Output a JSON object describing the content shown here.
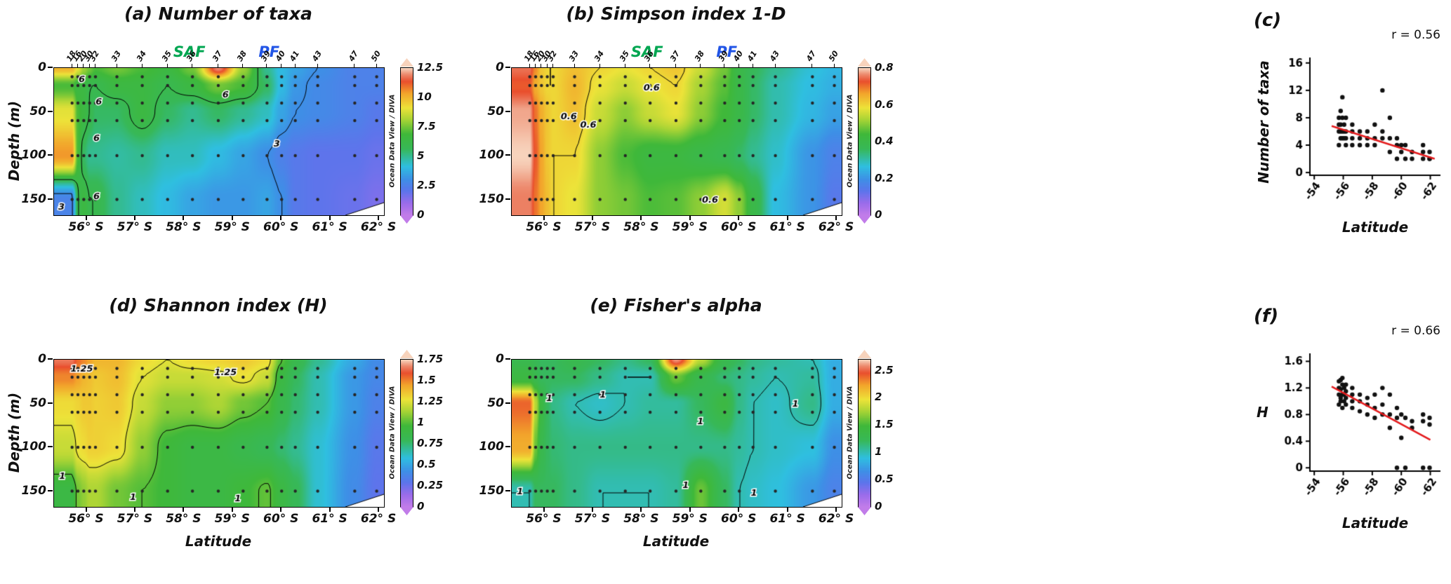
{
  "labels": {
    "depth_axis": "Depth (m)",
    "latitude_axis": "Latitude",
    "odv_credit": "Ocean Data View / DIVA"
  },
  "colors": {
    "saf_green": "#00A651",
    "pf_blue": "#2255E6",
    "regression_red": "#E31A1C",
    "sample_dot": "#262626",
    "contour_line": "#000000"
  },
  "section_common": {
    "lat_range": [
      -55.33,
      -62.1
    ],
    "depth_range": [
      0,
      168
    ],
    "depths": [
      0,
      20,
      50,
      100,
      150
    ],
    "sample_depths": [
      10,
      20,
      40,
      60,
      100,
      150
    ],
    "stations": [
      {
        "name": "18",
        "lat": -55.7
      },
      {
        "name": "16",
        "lat": -55.82
      },
      {
        "name": "20",
        "lat": -55.94
      },
      {
        "name": "30",
        "lat": -56.06
      },
      {
        "name": "32",
        "lat": -56.18
      },
      {
        "name": "33",
        "lat": -56.62
      },
      {
        "name": "34",
        "lat": -57.14
      },
      {
        "name": "35",
        "lat": -57.66
      },
      {
        "name": "36",
        "lat": -58.17
      },
      {
        "name": "37",
        "lat": -58.7
      },
      {
        "name": "38",
        "lat": -59.21
      },
      {
        "name": "39",
        "lat": -59.7
      },
      {
        "name": "40",
        "lat": -60.0
      },
      {
        "name": "41",
        "lat": -60.28
      },
      {
        "name": "43",
        "lat": -60.74
      },
      {
        "name": "47",
        "lat": -61.5
      },
      {
        "name": "50",
        "lat": -61.95
      }
    ],
    "x_ticks": [
      {
        "v": -56,
        "label": "56° S"
      },
      {
        "v": -57,
        "label": "57° S"
      },
      {
        "v": -58,
        "label": "58° S"
      },
      {
        "v": -59,
        "label": "59° S"
      },
      {
        "v": -60,
        "label": "60° S"
      },
      {
        "v": -61,
        "label": "61° S"
      },
      {
        "v": -62,
        "label": "62° S"
      }
    ],
    "y_ticks": [
      0,
      50,
      100,
      150
    ],
    "fronts": [
      {
        "label": "SAF",
        "lat": -58.05,
        "color": "#00A651"
      },
      {
        "label": "PF",
        "lat": -59.8,
        "color": "#2255E6"
      }
    ],
    "colormap": [
      [
        0,
        "#C17CE9"
      ],
      [
        0.08,
        "#9A6CEA"
      ],
      [
        0.16,
        "#5E74EB"
      ],
      [
        0.24,
        "#3E8FE6"
      ],
      [
        0.33,
        "#2FBFE0"
      ],
      [
        0.45,
        "#37B858"
      ],
      [
        0.55,
        "#3FB83A"
      ],
      [
        0.65,
        "#A8D435"
      ],
      [
        0.73,
        "#EDE339"
      ],
      [
        0.83,
        "#F2A32B"
      ],
      [
        0.91,
        "#E94F2D"
      ],
      [
        0.96,
        "#ED8C70"
      ],
      [
        1,
        "#F7D3BC"
      ]
    ]
  },
  "chart_data": [
    {
      "id": "a",
      "type": "heatmap_section",
      "title": "(a) Number of taxa",
      "ylabel": "Depth (m)",
      "xlabel": "",
      "vmin": 0,
      "vmax": 12.5,
      "colorbar_ticks": [
        "12.5",
        "10",
        "7.5",
        "5",
        "2.5",
        "0"
      ],
      "contour_levels": [
        3,
        6
      ],
      "contour_labels": [
        [
          -55.9,
          13,
          "6"
        ],
        [
          -56.25,
          38,
          "6"
        ],
        [
          -58.85,
          30,
          "6"
        ],
        [
          -56.2,
          80,
          "6"
        ],
        [
          -56.2,
          146,
          "6"
        ],
        [
          -59.9,
          86,
          "3"
        ],
        [
          -55.48,
          158,
          "3"
        ]
      ],
      "show_fronts": true,
      "show_stations": true,
      "values": [
        [
          10,
          9,
          8,
          7.5,
          7,
          7.5,
          7,
          6.5,
          7.5,
          12,
          8,
          5,
          4,
          3.5,
          3,
          2.5,
          2.5
        ],
        [
          7,
          6.5,
          6.5,
          6,
          6,
          6.5,
          6.5,
          6,
          6.5,
          7.5,
          7,
          5.5,
          4,
          3.2,
          2.8,
          2.5,
          2.5
        ],
        [
          9,
          7,
          6.5,
          6,
          5.5,
          5.5,
          6.5,
          5.5,
          5,
          5.5,
          5,
          4.5,
          3.5,
          3,
          2.8,
          2.5,
          2.2
        ],
        [
          10.5,
          7,
          5.5,
          5,
          5,
          4.8,
          5,
          4.5,
          4.5,
          4,
          3.5,
          3,
          2.5,
          2.2,
          2,
          2,
          1.8
        ],
        [
          2.6,
          6,
          6.5,
          6,
          6,
          5,
          4.5,
          4,
          3.5,
          3.2,
          3.2,
          3.5,
          3,
          2.2,
          2,
          1.8,
          1.5
        ]
      ]
    },
    {
      "id": "b",
      "type": "heatmap_section",
      "title": "(b) Simpson index 1-D",
      "ylabel": "",
      "xlabel": "",
      "vmin": 0,
      "vmax": 0.8,
      "colorbar_ticks": [
        "0.8",
        "0.6",
        "0.4",
        "0.2",
        "0"
      ],
      "contour_levels": [
        0.6
      ],
      "contour_labels": [
        [
          -56.5,
          55,
          "0.6"
        ],
        [
          -58.2,
          22,
          "0.6"
        ],
        [
          -56.9,
          65,
          "0.6"
        ],
        [
          -59.4,
          150,
          "0.6"
        ]
      ],
      "show_fronts": true,
      "show_stations": true,
      "values": [
        [
          0.75,
          0.68,
          0.62,
          0.6,
          0.6,
          0.63,
          0.6,
          0.58,
          0.6,
          0.62,
          0.55,
          0.48,
          0.4,
          0.36,
          0.32,
          0.27,
          0.25
        ],
        [
          0.72,
          0.65,
          0.62,
          0.6,
          0.6,
          0.64,
          0.58,
          0.55,
          0.58,
          0.6,
          0.52,
          0.46,
          0.4,
          0.35,
          0.3,
          0.26,
          0.24
        ],
        [
          0.78,
          0.7,
          0.65,
          0.62,
          0.6,
          0.63,
          0.55,
          0.5,
          0.55,
          0.58,
          0.5,
          0.44,
          0.4,
          0.35,
          0.3,
          0.25,
          0.22
        ],
        [
          0.8,
          0.72,
          0.66,
          0.62,
          0.6,
          0.6,
          0.5,
          0.45,
          0.42,
          0.42,
          0.4,
          0.38,
          0.35,
          0.32,
          0.28,
          0.2,
          0.16
        ],
        [
          0.76,
          0.7,
          0.66,
          0.63,
          0.6,
          0.58,
          0.5,
          0.48,
          0.45,
          0.46,
          0.5,
          0.56,
          0.5,
          0.4,
          0.26,
          0.2,
          0.14
        ]
      ]
    },
    {
      "id": "c",
      "type": "scatter",
      "label": "(c)",
      "r_label": "r = 0.56",
      "xlabel": "Latitude",
      "ylabel": "Number of taxa",
      "ylabel_rotated": true,
      "x_range": [
        -53.7,
        -62.7
      ],
      "y_range": [
        -0.4,
        16.8
      ],
      "x_ticks": [
        -54,
        -56,
        -58,
        -60,
        -62
      ],
      "y_ticks": [
        0,
        4,
        8,
        12,
        16
      ],
      "points": [
        [
          -55.7,
          8
        ],
        [
          -55.7,
          7
        ],
        [
          -55.7,
          6
        ],
        [
          -55.7,
          4
        ],
        [
          -55.82,
          9
        ],
        [
          -55.82,
          7
        ],
        [
          -55.82,
          6
        ],
        [
          -55.82,
          5
        ],
        [
          -55.94,
          11
        ],
        [
          -55.94,
          8
        ],
        [
          -55.94,
          6
        ],
        [
          -55.94,
          5
        ],
        [
          -56.06,
          7
        ],
        [
          -56.06,
          6
        ],
        [
          -56.06,
          5
        ],
        [
          -56.18,
          8
        ],
        [
          -56.18,
          6
        ],
        [
          -56.18,
          5
        ],
        [
          -56.18,
          4
        ],
        [
          -56.62,
          7
        ],
        [
          -56.62,
          6
        ],
        [
          -56.62,
          5
        ],
        [
          -56.62,
          4
        ],
        [
          -57.14,
          6
        ],
        [
          -57.14,
          5
        ],
        [
          -57.14,
          4
        ],
        [
          -57.66,
          6
        ],
        [
          -57.66,
          5
        ],
        [
          -57.66,
          4
        ],
        [
          -58.17,
          7
        ],
        [
          -58.17,
          5
        ],
        [
          -58.17,
          4
        ],
        [
          -58.7,
          12
        ],
        [
          -58.7,
          6
        ],
        [
          -58.7,
          5
        ],
        [
          -59.21,
          8
        ],
        [
          -59.21,
          5
        ],
        [
          -59.21,
          3
        ],
        [
          -59.7,
          5
        ],
        [
          -59.7,
          4
        ],
        [
          -59.7,
          2
        ],
        [
          -60.0,
          4
        ],
        [
          -60.0,
          3
        ],
        [
          -60.28,
          4
        ],
        [
          -60.28,
          2
        ],
        [
          -60.74,
          3
        ],
        [
          -60.74,
          2
        ],
        [
          -61.5,
          4
        ],
        [
          -61.5,
          3
        ],
        [
          -61.5,
          2
        ],
        [
          -61.95,
          3
        ],
        [
          -61.95,
          2
        ],
        [
          -61.95,
          2
        ]
      ],
      "trend": [
        [
          -55.2,
          6.8
        ],
        [
          -62.3,
          2.0
        ]
      ]
    },
    {
      "id": "d",
      "type": "heatmap_section",
      "title": "(d) Shannon index (H)",
      "ylabel": "Depth (m)",
      "xlabel": "Latitude",
      "vmin": 0,
      "vmax": 1.75,
      "colorbar_ticks": [
        "1.75",
        "1.5",
        "1.25",
        "1",
        "0.75",
        "0.5",
        "0.25",
        "0"
      ],
      "contour_levels": [
        1,
        1.25
      ],
      "contour_labels": [
        [
          -55.9,
          10,
          "1.25"
        ],
        [
          -58.85,
          14,
          "1.25"
        ],
        [
          -55.5,
          133,
          "1"
        ],
        [
          -56.95,
          157,
          "1"
        ],
        [
          -59.1,
          158,
          "1"
        ]
      ],
      "show_fronts": false,
      "show_stations": false,
      "values": [
        [
          1.65,
          1.55,
          1.5,
          1.45,
          1.4,
          1.4,
          1.3,
          1.25,
          1.3,
          1.32,
          1.35,
          1.3,
          1.0,
          0.85,
          0.7,
          0.5,
          0.4
        ],
        [
          1.5,
          1.45,
          1.4,
          1.38,
          1.35,
          1.38,
          1.25,
          1.2,
          1.2,
          1.22,
          1.28,
          1.2,
          0.9,
          0.78,
          0.65,
          0.45,
          0.38
        ],
        [
          1.3,
          1.32,
          1.35,
          1.35,
          1.33,
          1.35,
          1.2,
          1.1,
          1.1,
          1.15,
          1.05,
          1.0,
          0.85,
          0.75,
          0.65,
          0.45,
          0.35
        ],
        [
          1.2,
          1.28,
          1.3,
          1.33,
          1.33,
          1.3,
          1.1,
          0.95,
          0.9,
          0.9,
          0.85,
          0.8,
          0.75,
          0.7,
          0.6,
          0.42,
          0.3
        ],
        [
          0.9,
          1.05,
          1.1,
          1.15,
          1.15,
          1.05,
          1.0,
          0.95,
          0.9,
          0.9,
          0.95,
          1.02,
          0.9,
          0.8,
          0.6,
          0.4,
          0.28
        ]
      ]
    },
    {
      "id": "e",
      "type": "heatmap_section",
      "title": "(e) Fisher's alpha",
      "ylabel": "",
      "xlabel": "Latitude",
      "vmin": 0,
      "vmax": 2.7,
      "colorbar_ticks": [
        "2.5",
        "2",
        "1.5",
        "1",
        "0.5",
        "0"
      ],
      "contour_levels": [
        1
      ],
      "contour_labels": [
        [
          -56.1,
          44,
          "1"
        ],
        [
          -57.2,
          40,
          "1"
        ],
        [
          -59.2,
          70,
          "1"
        ],
        [
          -61.15,
          50,
          "1"
        ],
        [
          -55.5,
          150,
          "1"
        ],
        [
          -58.9,
          143,
          "1"
        ],
        [
          -60.3,
          152,
          "1"
        ]
      ],
      "show_fronts": false,
      "show_stations": false,
      "values": [
        [
          1.3,
          1.25,
          1.2,
          1.2,
          1.2,
          1.3,
          1.2,
          1.1,
          1.2,
          2.6,
          1.8,
          1.3,
          1.2,
          1.1,
          1.05,
          1.0,
          0.8
        ],
        [
          1.4,
          1.3,
          1.2,
          1.2,
          1.2,
          1.2,
          1.1,
          1.0,
          1.0,
          1.6,
          1.3,
          1.15,
          1.1,
          1.05,
          1.0,
          1.05,
          0.8
        ],
        [
          2.4,
          1.8,
          1.4,
          1.2,
          1.1,
          1.0,
          0.95,
          1.0,
          1.05,
          1.05,
          1.2,
          1.4,
          1.1,
          1.0,
          0.95,
          1.1,
          0.8
        ],
        [
          2.2,
          1.6,
          1.3,
          1.2,
          1.15,
          1.1,
          1.1,
          1.1,
          1.1,
          1.1,
          1.1,
          1.1,
          1.05,
          1.0,
          0.95,
          0.9,
          0.65
        ],
        [
          1.0,
          1.2,
          1.2,
          1.2,
          1.2,
          1.1,
          1.0,
          1.0,
          1.0,
          1.05,
          1.6,
          1.2,
          1.0,
          0.95,
          0.9,
          0.7,
          0.55
        ]
      ]
    },
    {
      "id": "f",
      "type": "scatter",
      "label": "(f)",
      "r_label": "r = 0.66",
      "xlabel": "Latitude",
      "ylabel": "H",
      "ylabel_rotated": false,
      "x_range": [
        -53.7,
        -62.7
      ],
      "y_range": [
        -0.05,
        1.72
      ],
      "x_ticks": [
        -54,
        -56,
        -58,
        -60,
        -62
      ],
      "y_ticks": [
        0,
        0.4,
        0.8,
        1.2,
        1.6
      ],
      "points": [
        [
          -55.7,
          1.3
        ],
        [
          -55.7,
          1.2
        ],
        [
          -55.7,
          1.1
        ],
        [
          -55.7,
          0.95
        ],
        [
          -55.82,
          1.32
        ],
        [
          -55.82,
          1.18
        ],
        [
          -55.82,
          1.05
        ],
        [
          -55.82,
          1.0
        ],
        [
          -55.94,
          1.35
        ],
        [
          -55.94,
          1.25
        ],
        [
          -55.94,
          1.1
        ],
        [
          -55.94,
          0.9
        ],
        [
          -56.06,
          1.2
        ],
        [
          -56.06,
          1.1
        ],
        [
          -56.06,
          1.0
        ],
        [
          -56.18,
          1.25
        ],
        [
          -56.18,
          1.15
        ],
        [
          -56.18,
          1.05
        ],
        [
          -56.18,
          0.95
        ],
        [
          -56.62,
          1.2
        ],
        [
          -56.62,
          1.1
        ],
        [
          -56.62,
          1.0
        ],
        [
          -56.62,
          0.9
        ],
        [
          -57.14,
          1.1
        ],
        [
          -57.14,
          1.0
        ],
        [
          -57.14,
          0.85
        ],
        [
          -57.66,
          1.05
        ],
        [
          -57.66,
          0.95
        ],
        [
          -57.66,
          0.8
        ],
        [
          -58.17,
          1.1
        ],
        [
          -58.17,
          0.9
        ],
        [
          -58.17,
          0.75
        ],
        [
          -58.7,
          1.2
        ],
        [
          -58.7,
          0.95
        ],
        [
          -58.7,
          0.8
        ],
        [
          -59.21,
          1.1
        ],
        [
          -59.21,
          0.8
        ],
        [
          -59.21,
          0.6
        ],
        [
          -59.7,
          0.9
        ],
        [
          -59.7,
          0.75
        ],
        [
          -59.7,
          0.0
        ],
        [
          -60.0,
          0.8
        ],
        [
          -60.0,
          0.45
        ],
        [
          -60.28,
          0.75
        ],
        [
          -60.28,
          0.0
        ],
        [
          -60.74,
          0.7
        ],
        [
          -60.74,
          0.6
        ],
        [
          -61.5,
          0.8
        ],
        [
          -61.5,
          0.7
        ],
        [
          -61.5,
          0.0
        ],
        [
          -61.95,
          0.75
        ],
        [
          -61.95,
          0.65
        ],
        [
          -61.95,
          0.0
        ]
      ],
      "trend": [
        [
          -55.2,
          1.22
        ],
        [
          -62.0,
          0.42
        ]
      ]
    }
  ]
}
